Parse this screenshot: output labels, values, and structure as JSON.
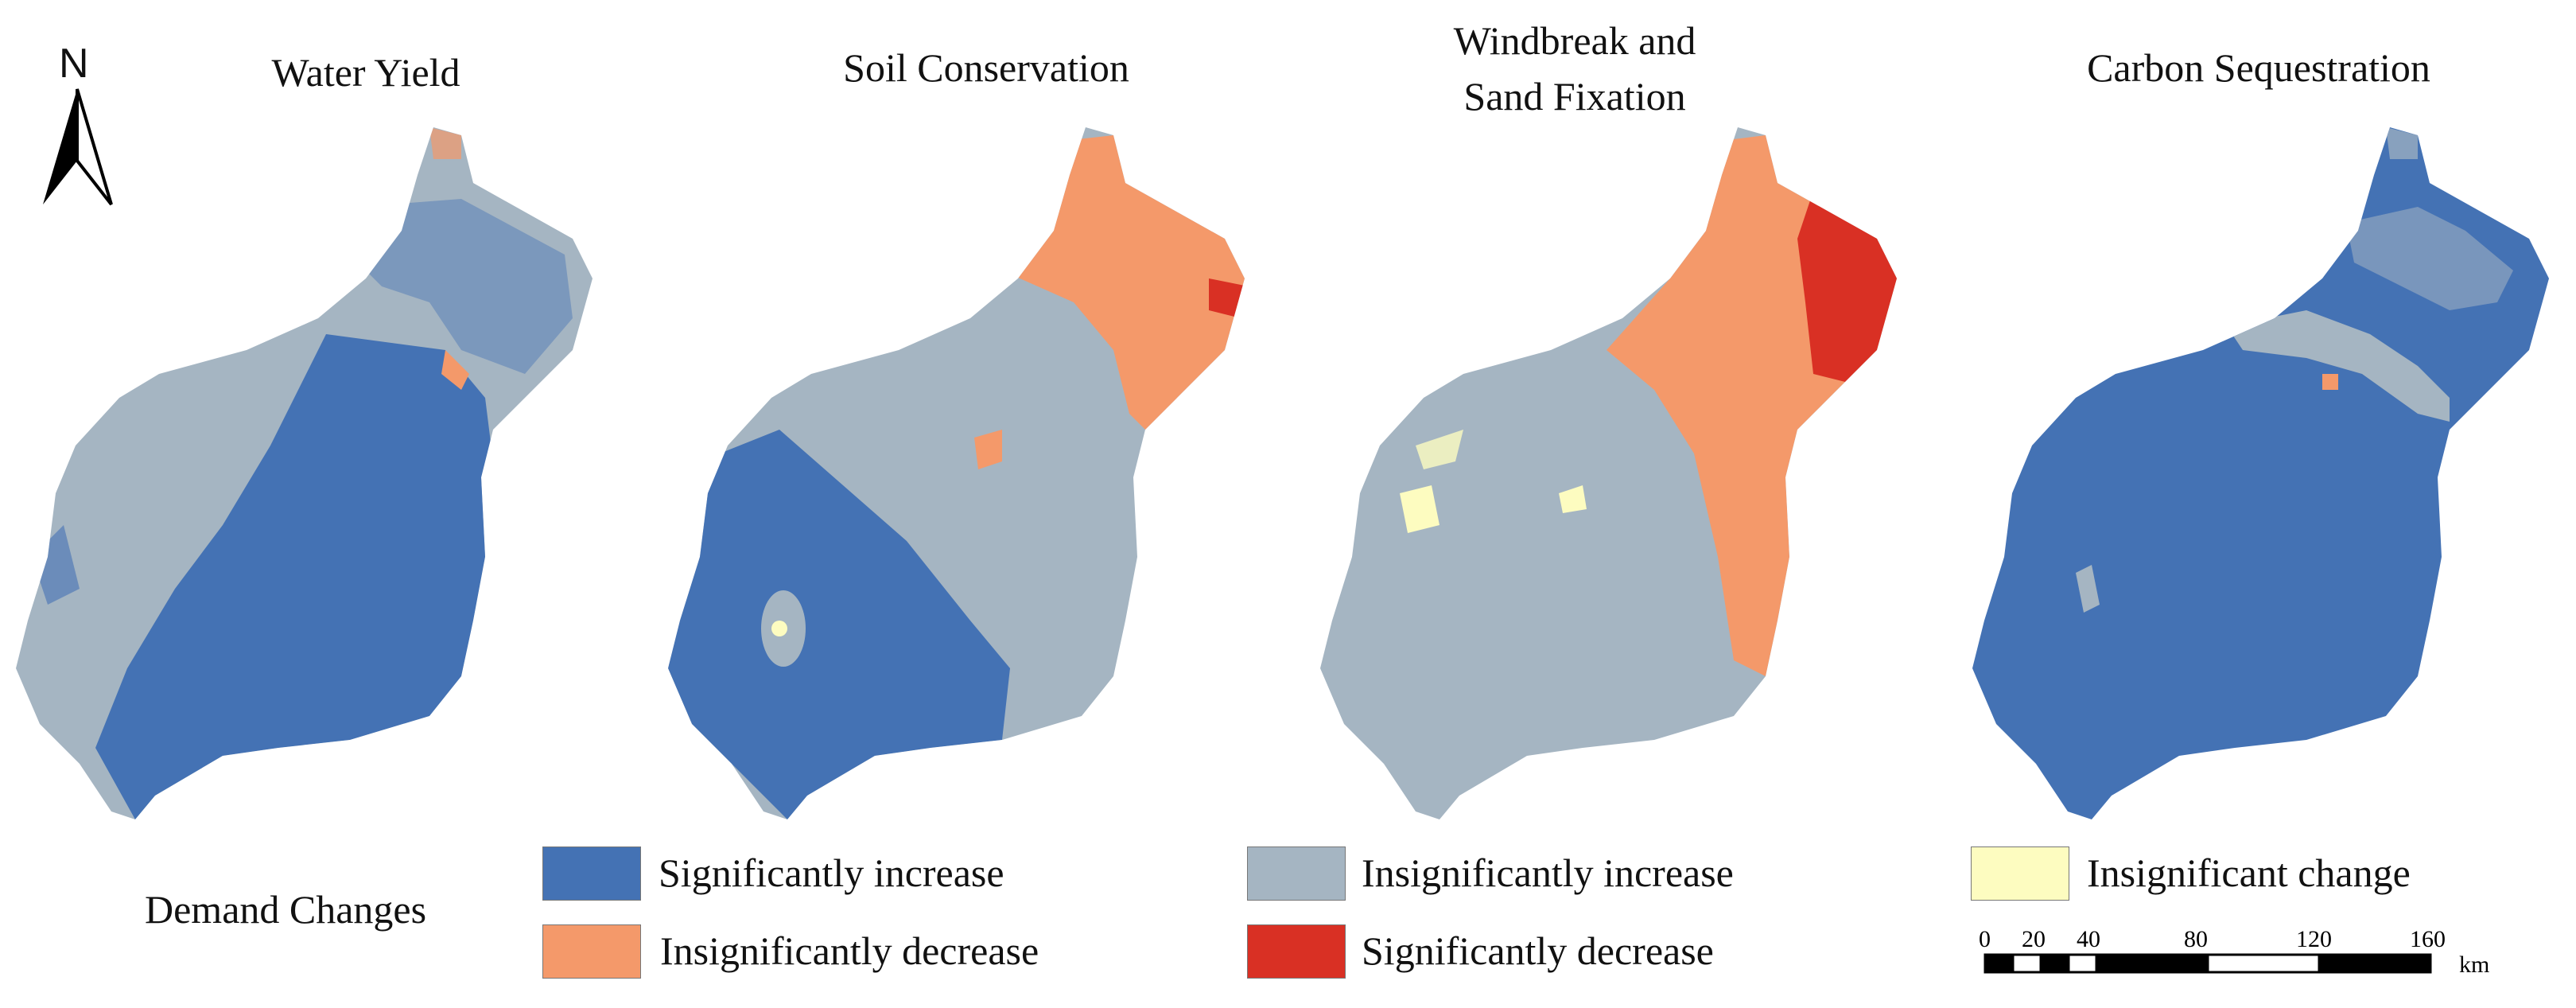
{
  "north_arrow": {
    "letter": "N",
    "icon": "north-arrow-icon"
  },
  "panels": [
    {
      "id": "water-yield",
      "title": "Water Yield"
    },
    {
      "id": "soil-conservation",
      "title": "Soil Conservation"
    },
    {
      "id": "windbreak",
      "title_line1": "Windbreak and",
      "title_line2": "Sand Fixation"
    },
    {
      "id": "carbon-sequestration",
      "title": "Carbon Sequestration"
    }
  ],
  "legend": {
    "title": "Demand Changes",
    "items": [
      {
        "label": "Significantly increase",
        "color": "#4472b4"
      },
      {
        "label": "Insignificantly decrease",
        "color": "#f4996a"
      },
      {
        "label": "Insignificantly increase",
        "color": "#a5b5c2"
      },
      {
        "label": "Significantly decrease",
        "color": "#d93024"
      },
      {
        "label": "Insignificant change",
        "color": "#fdfcc0"
      }
    ]
  },
  "scale_bar": {
    "ticks": [
      "0",
      "20",
      "40",
      "80",
      "120",
      "160"
    ],
    "unit": "km"
  }
}
